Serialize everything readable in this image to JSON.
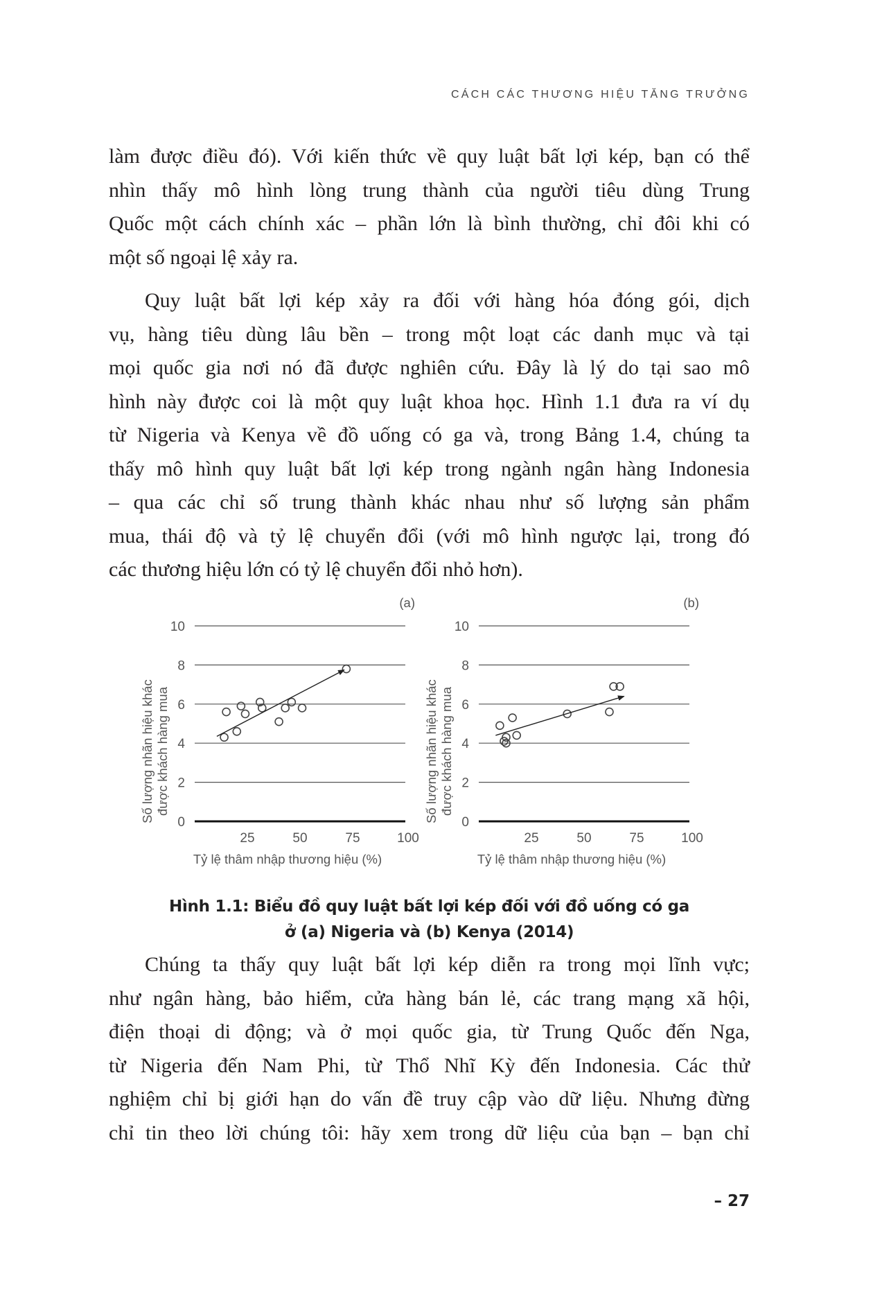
{
  "header": {
    "running_title": "CÁCH CÁC THƯƠNG HIỆU TĂNG TRƯỞNG"
  },
  "paragraphs": [
    {
      "indent": false,
      "lines": [
        "làm được điều đó). Với kiến thức về quy luật bất lợi kép, bạn có thể",
        "nhìn thấy mô hình lòng trung thành của người tiêu dùng Trung",
        "Quốc một cách chính xác – phần lớn là bình thường, chỉ đôi khi có",
        "một số ngoại lệ xảy ra."
      ]
    },
    {
      "indent": true,
      "lines": [
        "Quy luật bất lợi kép xảy ra đối với hàng hóa đóng gói, dịch",
        "vụ, hàng tiêu dùng lâu bền – trong một loạt các danh mục và tại",
        "mọi quốc gia nơi nó đã được nghiên cứu. Đây là lý do tại sao mô",
        "hình này được coi là một quy luật khoa học. Hình 1.1 đưa ra ví dụ",
        "từ Nigeria và Kenya về đồ uống có ga và, trong Bảng 1.4, chúng ta",
        "thấy mô hình quy luật bất lợi kép trong ngành ngân hàng Indonesia",
        "– qua các chỉ số trung thành khác nhau như số lượng sản phẩm",
        "mua, thái độ và tỷ lệ chuyển đổi (với mô hình ngược lại, trong đó",
        "các thương hiệu lớn có tỷ lệ chuyển đổi nhỏ hơn)."
      ]
    },
    {
      "indent": true,
      "lines": [
        "Chúng ta thấy quy luật bất lợi kép diễn ra trong mọi lĩnh vực;",
        "như ngân hàng, bảo hiểm, cửa hàng bán lẻ, các trang mạng xã hội,",
        "điện thoại di động; và ở mọi quốc gia, từ Trung Quốc đến Nga,",
        "từ Nigeria đến Nam Phi, từ Thổ Nhĩ Kỳ đến Indonesia. Các thử",
        "nghiệm chỉ bị giới hạn do vấn đề truy cập vào dữ liệu. Nhưng đừng",
        "chỉ tin theo lời chúng tôi: hãy xem trong dữ liệu của bạn – bạn chỉ"
      ]
    }
  ],
  "caption": {
    "line1": "Hình 1.1: Biểu đồ quy luật bất lợi kép đối với đồ uống có ga",
    "line2": "ở (a) Nigeria và (b) Kenya (2014)"
  },
  "page_number": "– 27",
  "chart_data": [
    {
      "type": "scatter",
      "panel_label": "(a)",
      "xlabel": "Tỷ lệ thâm nhập thương hiệu (%)",
      "ylabel_lines": [
        "Số lượng nhãn hiệu khác",
        "được khách hàng mua"
      ],
      "xlim": [
        0,
        100
      ],
      "ylim": [
        0,
        10
      ],
      "xticks": [
        "25",
        "50",
        "75",
        "100"
      ],
      "yticks": [
        "0",
        "2",
        "4",
        "6",
        "8",
        "10"
      ],
      "grid": "horizontal",
      "marker": "open-circle",
      "points": [
        [
          14,
          4.3
        ],
        [
          15,
          5.6
        ],
        [
          20,
          4.6
        ],
        [
          22,
          5.9
        ],
        [
          24,
          5.5
        ],
        [
          31,
          6.1
        ],
        [
          32,
          5.8
        ],
        [
          40,
          5.1
        ],
        [
          43,
          5.8
        ],
        [
          46,
          6.1
        ],
        [
          51,
          5.8
        ],
        [
          72,
          7.8
        ]
      ],
      "trend_arrow": [
        [
          10.5,
          4.35
        ],
        [
          71,
          7.75
        ]
      ]
    },
    {
      "type": "scatter",
      "panel_label": "(b)",
      "xlabel": "Tỷ lệ thâm nhập thương hiệu (%)",
      "ylabel_lines": [
        "Số lượng nhãn hiệu khác",
        "được khách hàng mua"
      ],
      "xlim": [
        0,
        100
      ],
      "ylim": [
        0,
        10
      ],
      "xticks": [
        "25",
        "50",
        "75",
        "100"
      ],
      "yticks": [
        "0",
        "2",
        "4",
        "6",
        "8",
        "10"
      ],
      "grid": "horizontal",
      "marker": "open-circle",
      "points": [
        [
          10,
          4.9
        ],
        [
          16,
          5.3
        ],
        [
          13,
          4.3
        ],
        [
          12,
          4.1
        ],
        [
          13,
          4.0
        ],
        [
          18,
          4.4
        ],
        [
          42,
          5.5
        ],
        [
          62,
          5.6
        ],
        [
          64,
          6.9
        ],
        [
          67,
          6.9
        ]
      ],
      "trend_arrow": [
        [
          8,
          4.4
        ],
        [
          69,
          6.4
        ]
      ]
    }
  ]
}
